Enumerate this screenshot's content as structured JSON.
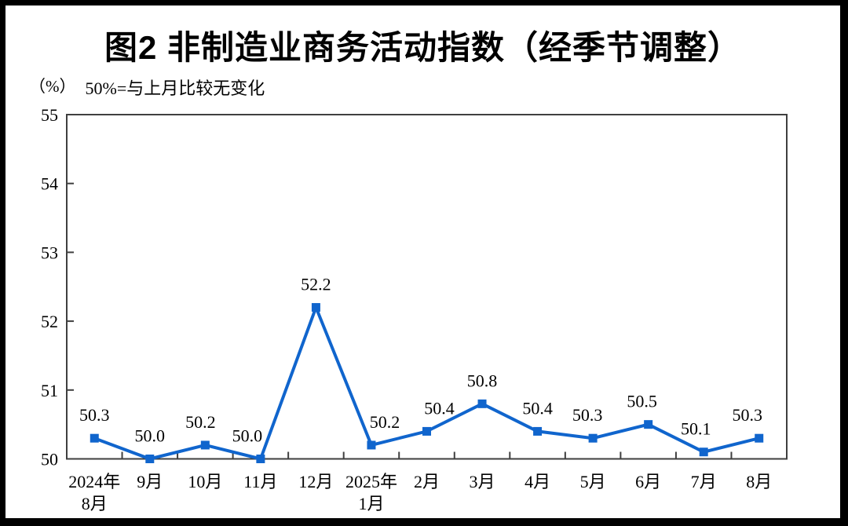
{
  "page": {
    "title": "图2 非制造业商务活动指数（经季节调整）",
    "unit_label": "（%）",
    "subtitle": "50%=与上月比较无变化"
  },
  "chart_data": {
    "type": "line",
    "title": "图2 非制造业商务活动指数（经季节调整）",
    "subtitle": "50%=与上月比较无变化",
    "unit": "%",
    "baseline_note": "50%=与上月比较无变化",
    "categories": [
      "2024年\n8月",
      "9月",
      "10月",
      "11月",
      "12月",
      "2025年\n1月",
      "2月",
      "3月",
      "4月",
      "5月",
      "6月",
      "7月",
      "8月"
    ],
    "series": [
      {
        "name": "非制造业商务活动指数",
        "values": [
          50.3,
          50.0,
          50.2,
          50.0,
          52.2,
          50.2,
          50.4,
          50.8,
          50.4,
          50.3,
          50.5,
          50.1,
          50.3
        ],
        "labels": [
          "50.3",
          "50.0",
          "50.2",
          "50.0",
          "52.2",
          "50.2",
          "50.4",
          "50.8",
          "50.4",
          "50.3",
          "50.5",
          "50.1",
          "50.3"
        ],
        "color": "#1065CD",
        "marker": "square"
      }
    ],
    "ylim": [
      50,
      55
    ],
    "ytick_step": 1,
    "ytick_labels": [
      "50",
      "51",
      "52",
      "53",
      "54",
      "55"
    ],
    "grid": false,
    "legend_position": "none",
    "axis_color": "#3f3f3f",
    "label_dx": [
      0,
      0,
      -6,
      -17,
      0,
      17,
      16,
      0,
      0,
      -7,
      -8,
      -10,
      -15
    ]
  }
}
